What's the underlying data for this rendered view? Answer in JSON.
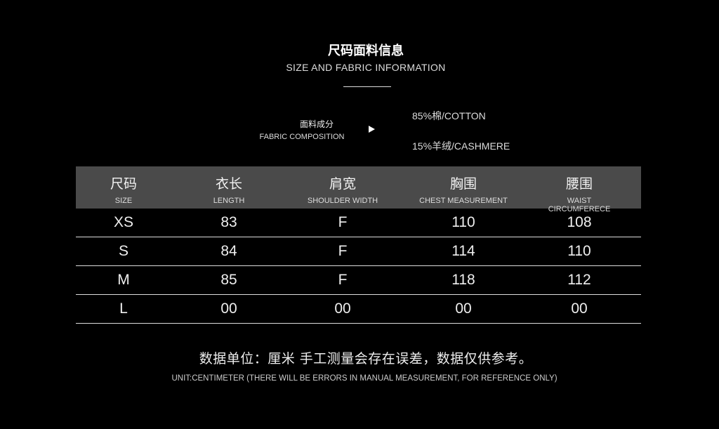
{
  "header": {
    "title": "尺码面料信息",
    "subtitle": "SIZE AND FABRIC INFORMATION"
  },
  "fabric": {
    "label_cn": "面料成分",
    "label_en": "FABRIC COMPOSITION",
    "arrow_icon": "play-triangle-icon",
    "components": [
      "85%棉/COTTON",
      "15%羊绒/CASHMERE"
    ]
  },
  "table": {
    "header_bg": "#4a4a4a",
    "columns": [
      {
        "cn": "尺码",
        "en": "SIZE"
      },
      {
        "cn": "衣长",
        "en": "LENGTH"
      },
      {
        "cn": "肩宽",
        "en": "SHOULDER WIDTH"
      },
      {
        "cn": "胸围",
        "en": "CHEST MEASUREMENT"
      },
      {
        "cn": "腰围",
        "en": "WAIST CIRCUMFERECE"
      }
    ],
    "rows": [
      [
        "XS",
        "83",
        "F",
        "110",
        "108"
      ],
      [
        "S",
        "84",
        "F",
        "114",
        "110"
      ],
      [
        "M",
        "85",
        "F",
        "118",
        "112"
      ],
      [
        "L",
        "00",
        "00",
        "00",
        "00"
      ]
    ]
  },
  "note": {
    "cn": "数据单位：厘米 手工测量会存在误差，数据仅供参考。",
    "en": "UNIT:CENTIMETER (THERE WILL BE ERRORS IN MANUAL MEASUREMENT, FOR REFERENCE ONLY)"
  }
}
